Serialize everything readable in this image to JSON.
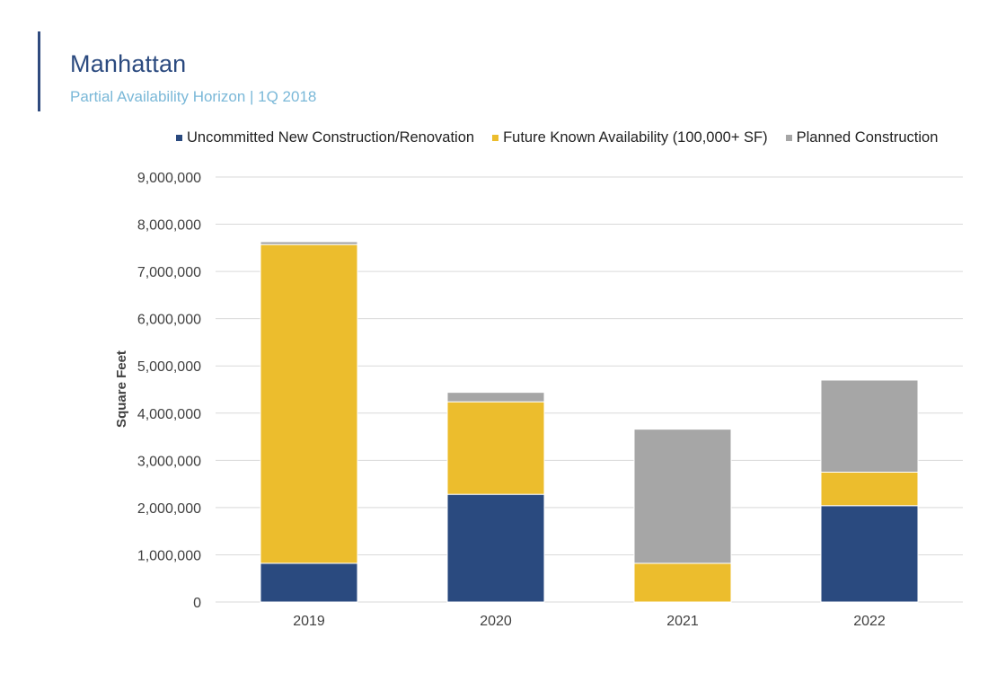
{
  "header": {
    "title": "Manhattan",
    "subtitle": "Partial Availability Horizon | 1Q 2018"
  },
  "colors": {
    "uncommitted": "#2a4a7f",
    "future": "#ecbd2d",
    "planned": "#a6a6a6",
    "grid": "#d9d9d9"
  },
  "chart_data": {
    "type": "bar",
    "stacked": true,
    "title": "",
    "xlabel": "",
    "ylabel": "Square Feet",
    "ylim": [
      0,
      9000000
    ],
    "yticks": [
      0,
      1000000,
      2000000,
      3000000,
      4000000,
      5000000,
      6000000,
      7000000,
      8000000,
      9000000
    ],
    "ytick_labels": [
      "0",
      "1,000,000",
      "2,000,000",
      "3,000,000",
      "4,000,000",
      "5,000,000",
      "6,000,000",
      "7,000,000",
      "8,000,000",
      "9,000,000"
    ],
    "categories": [
      "2019",
      "2020",
      "2021",
      "2022"
    ],
    "legend_position": "top",
    "series": [
      {
        "name": "Uncommitted New Construction/Renovation",
        "color_key": "uncommitted",
        "values": [
          820000,
          2280000,
          0,
          2040000
        ]
      },
      {
        "name": "Future Known Availability (100,000+ SF)",
        "color_key": "future",
        "values": [
          6750000,
          1960000,
          820000,
          710000
        ]
      },
      {
        "name": "Planned Construction",
        "color_key": "planned",
        "values": [
          60000,
          200000,
          2840000,
          1950000
        ]
      }
    ]
  }
}
